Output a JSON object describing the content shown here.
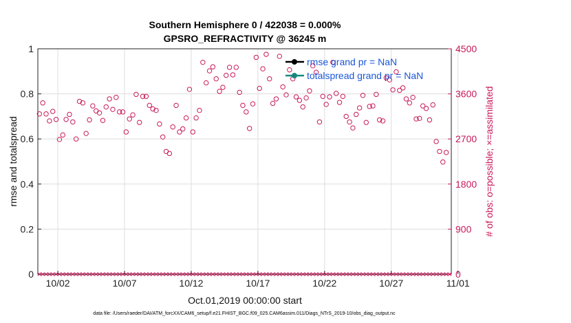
{
  "chart_data": {
    "type": "scatter",
    "title_line1": "Southern Hemisphere 0 / 422038 = 0.000%",
    "title_line2": "GPSRO_REFRACTIVITY @ 36245 m",
    "ylabel_left": "rmse and totalspread",
    "ylabel_right": "# of obs: o=possible; ×=assimilated",
    "xlabel": "Oct.01,2019 00:00:00 start",
    "footnote": "data file: /Users/raeder/DAI/ATM_forcXX/CAM6_setup/f.e21.FHIST_BGC.f09_025.CAM6assim.011/Diags_NTrS_2019-10/obs_diag_output.nc",
    "ylim_left": [
      0,
      1
    ],
    "ylim_right": [
      0,
      4500
    ],
    "xlim": [
      0.5,
      31.5
    ],
    "grid": true,
    "legend_position": "top-right",
    "left_ticks": [
      {
        "value": 0,
        "label": "0"
      },
      {
        "value": 0.2,
        "label": "0.2"
      },
      {
        "value": 0.4,
        "label": "0.4"
      },
      {
        "value": 0.6,
        "label": "0.6"
      },
      {
        "value": 0.8,
        "label": "0.8"
      },
      {
        "value": 1,
        "label": "1"
      }
    ],
    "right_ticks": [
      {
        "value": 0,
        "label": "0"
      },
      {
        "value": 900,
        "label": "900"
      },
      {
        "value": 1800,
        "label": "1800"
      },
      {
        "value": 2700,
        "label": "2700"
      },
      {
        "value": 3600,
        "label": "3600"
      },
      {
        "value": 4500,
        "label": "4500"
      }
    ],
    "x_ticks": [
      {
        "value": 2,
        "label": "10/02"
      },
      {
        "value": 7,
        "label": "10/07"
      },
      {
        "value": 12,
        "label": "10/12"
      },
      {
        "value": 17,
        "label": "10/17"
      },
      {
        "value": 22,
        "label": "10/22"
      },
      {
        "value": 27,
        "label": "10/27"
      },
      {
        "value": 32,
        "label": "11/01"
      }
    ],
    "colors": {
      "possible": "#c8195a",
      "rmse": "#000000",
      "totalspread": "#16887c",
      "legend_text": "#1a56d6",
      "right_axis": "#c8195a"
    },
    "series": [
      {
        "name": "rmse grand pr = NaN",
        "axis": "left",
        "style": "line-marker",
        "color": "#000000",
        "values": []
      },
      {
        "name": "totalspread grand pr = NaN",
        "axis": "left",
        "style": "line-marker",
        "color": "#16887c",
        "values": []
      },
      {
        "axis": "right",
        "style": "open-circle",
        "color": "#c8195a",
        "points": [
          [
            0.62,
            3200
          ],
          [
            0.87,
            3420
          ],
          [
            1.12,
            3200
          ],
          [
            1.37,
            3060
          ],
          [
            1.62,
            3250
          ],
          [
            1.87,
            3090
          ],
          [
            2.12,
            2690
          ],
          [
            2.37,
            2780
          ],
          [
            2.62,
            3090
          ],
          [
            2.87,
            3190
          ],
          [
            3.12,
            3040
          ],
          [
            3.37,
            2700
          ],
          [
            3.62,
            3450
          ],
          [
            3.87,
            3420
          ],
          [
            4.12,
            2810
          ],
          [
            4.37,
            3080
          ],
          [
            4.62,
            3360
          ],
          [
            4.87,
            3260
          ],
          [
            5.12,
            3220
          ],
          [
            5.37,
            3070
          ],
          [
            5.62,
            3340
          ],
          [
            5.87,
            3500
          ],
          [
            6.12,
            3290
          ],
          [
            6.37,
            3530
          ],
          [
            6.62,
            3240
          ],
          [
            6.87,
            3240
          ],
          [
            7.12,
            2840
          ],
          [
            7.37,
            3100
          ],
          [
            7.62,
            3180
          ],
          [
            7.87,
            3590
          ],
          [
            8.12,
            3030
          ],
          [
            8.37,
            3550
          ],
          [
            8.62,
            3550
          ],
          [
            8.87,
            3370
          ],
          [
            9.12,
            3300
          ],
          [
            9.37,
            3270
          ],
          [
            9.62,
            3000
          ],
          [
            9.87,
            2740
          ],
          [
            10.12,
            2450
          ],
          [
            10.37,
            2410
          ],
          [
            10.62,
            2940
          ],
          [
            10.87,
            3370
          ],
          [
            11.12,
            2840
          ],
          [
            11.37,
            2900
          ],
          [
            11.62,
            3120
          ],
          [
            11.87,
            3690
          ],
          [
            12.12,
            2840
          ],
          [
            12.37,
            3120
          ],
          [
            12.62,
            3270
          ],
          [
            12.87,
            4230
          ],
          [
            13.12,
            3820
          ],
          [
            13.37,
            4060
          ],
          [
            13.62,
            4140
          ],
          [
            13.87,
            3900
          ],
          [
            14.12,
            3650
          ],
          [
            14.37,
            3730
          ],
          [
            14.62,
            3970
          ],
          [
            14.87,
            4130
          ],
          [
            15.12,
            3980
          ],
          [
            15.37,
            4130
          ],
          [
            15.62,
            3630
          ],
          [
            15.87,
            3370
          ],
          [
            16.12,
            3240
          ],
          [
            16.37,
            2910
          ],
          [
            16.62,
            3400
          ],
          [
            16.87,
            4330
          ],
          [
            17.12,
            3710
          ],
          [
            17.37,
            4100
          ],
          [
            17.62,
            4390
          ],
          [
            17.87,
            3900
          ],
          [
            18.12,
            3410
          ],
          [
            18.37,
            3500
          ],
          [
            18.62,
            4350
          ],
          [
            18.87,
            3740
          ],
          [
            19.12,
            3580
          ],
          [
            19.37,
            4080
          ],
          [
            19.62,
            3900
          ],
          [
            19.87,
            3540
          ],
          [
            20.12,
            3470
          ],
          [
            20.37,
            3340
          ],
          [
            20.62,
            3520
          ],
          [
            20.87,
            3660
          ],
          [
            21.12,
            4160
          ],
          [
            21.37,
            4030
          ],
          [
            21.62,
            3040
          ],
          [
            21.87,
            3550
          ],
          [
            22.12,
            3390
          ],
          [
            22.37,
            3540
          ],
          [
            22.62,
            4230
          ],
          [
            22.87,
            3610
          ],
          [
            23.12,
            3430
          ],
          [
            23.37,
            3550
          ],
          [
            23.62,
            3150
          ],
          [
            23.87,
            3040
          ],
          [
            24.12,
            2920
          ],
          [
            24.37,
            3190
          ],
          [
            24.62,
            3320
          ],
          [
            24.87,
            3570
          ],
          [
            25.12,
            3030
          ],
          [
            25.37,
            3350
          ],
          [
            25.62,
            3360
          ],
          [
            25.87,
            3590
          ],
          [
            26.12,
            3080
          ],
          [
            26.37,
            3060
          ],
          [
            26.62,
            3920
          ],
          [
            26.87,
            3880
          ],
          [
            27.12,
            3680
          ],
          [
            27.37,
            4040
          ],
          [
            27.62,
            3670
          ],
          [
            27.87,
            3720
          ],
          [
            28.12,
            3500
          ],
          [
            28.37,
            3420
          ],
          [
            28.62,
            3530
          ],
          [
            28.87,
            3100
          ],
          [
            29.12,
            3110
          ],
          [
            29.37,
            3360
          ],
          [
            29.62,
            3310
          ],
          [
            29.87,
            3080
          ],
          [
            30.12,
            3380
          ],
          [
            30.37,
            2650
          ],
          [
            30.62,
            2450
          ],
          [
            30.87,
            2240
          ],
          [
            31.12,
            2430
          ]
        ]
      },
      {
        "axis": "right",
        "style": "cross",
        "color": "#c8195a",
        "values_constant": 0,
        "count": 124
      }
    ]
  }
}
